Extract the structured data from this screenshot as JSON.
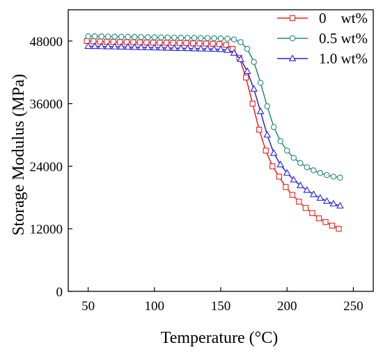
{
  "chart_data": {
    "type": "line",
    "xlabel": "Temperature (°C)",
    "ylabel": "Storage Modulus (MPa)",
    "xlim": [
      35,
      265
    ],
    "ylim": [
      0,
      54000
    ],
    "xticks": [
      50,
      100,
      150,
      200,
      250
    ],
    "yticks": [
      0,
      12000,
      24000,
      36000,
      48000
    ],
    "grid": false,
    "legend_position": "top-right",
    "series": [
      {
        "name": "0    wt%",
        "color": "#e8201c",
        "marker": "square",
        "x": [
          49,
          54,
          59,
          64,
          69,
          74,
          79,
          84,
          89,
          94,
          99,
          104,
          109,
          114,
          119,
          124,
          129,
          134,
          139,
          144,
          149,
          154,
          159,
          164,
          169,
          174,
          179,
          184,
          189,
          194,
          199,
          204,
          209,
          214,
          219,
          224,
          229,
          234,
          239
        ],
        "y": [
          48000,
          47950,
          47900,
          47870,
          47840,
          47800,
          47780,
          47760,
          47740,
          47720,
          47700,
          47680,
          47660,
          47640,
          47620,
          47600,
          47570,
          47540,
          47510,
          47480,
          47420,
          47250,
          46500,
          44800,
          41000,
          36000,
          31000,
          27000,
          24000,
          22000,
          20000,
          18500,
          17200,
          16000,
          15000,
          14000,
          13300,
          12600,
          12000
        ]
      },
      {
        "name": "0.5 wt%",
        "color": "#1f8a7a",
        "marker": "circle",
        "x": [
          50,
          55,
          60,
          65,
          70,
          75,
          80,
          85,
          90,
          95,
          100,
          105,
          110,
          115,
          120,
          125,
          130,
          135,
          140,
          145,
          150,
          155,
          160,
          165,
          170,
          175,
          180,
          185,
          190,
          195,
          200,
          205,
          210,
          215,
          220,
          225,
          230,
          235,
          240
        ],
        "y": [
          48900,
          48900,
          48880,
          48860,
          48840,
          48820,
          48800,
          48780,
          48760,
          48740,
          48720,
          48700,
          48680,
          48660,
          48640,
          48620,
          48600,
          48580,
          48560,
          48540,
          48500,
          48450,
          48300,
          47800,
          46500,
          44000,
          40000,
          35500,
          31500,
          28800,
          27000,
          25600,
          24600,
          23800,
          23200,
          22700,
          22300,
          22000,
          21800
        ]
      },
      {
        "name": "1.0 wt%",
        "color": "#2222e0",
        "marker": "triangle",
        "x": [
          50,
          55,
          60,
          65,
          70,
          75,
          80,
          85,
          90,
          95,
          100,
          105,
          110,
          115,
          120,
          125,
          130,
          135,
          140,
          145,
          150,
          155,
          160,
          165,
          170,
          175,
          180,
          185,
          190,
          195,
          200,
          205,
          210,
          215,
          220,
          225,
          230,
          235,
          240
        ],
        "y": [
          47000,
          46980,
          46960,
          46940,
          46910,
          46880,
          46850,
          46820,
          46790,
          46760,
          46730,
          46700,
          46670,
          46640,
          46610,
          46580,
          46550,
          46520,
          46490,
          46460,
          46400,
          46250,
          45700,
          44500,
          42200,
          38800,
          34500,
          30000,
          26500,
          24300,
          22700,
          21400,
          20300,
          19400,
          18600,
          17900,
          17300,
          16800,
          16400
        ]
      }
    ]
  }
}
